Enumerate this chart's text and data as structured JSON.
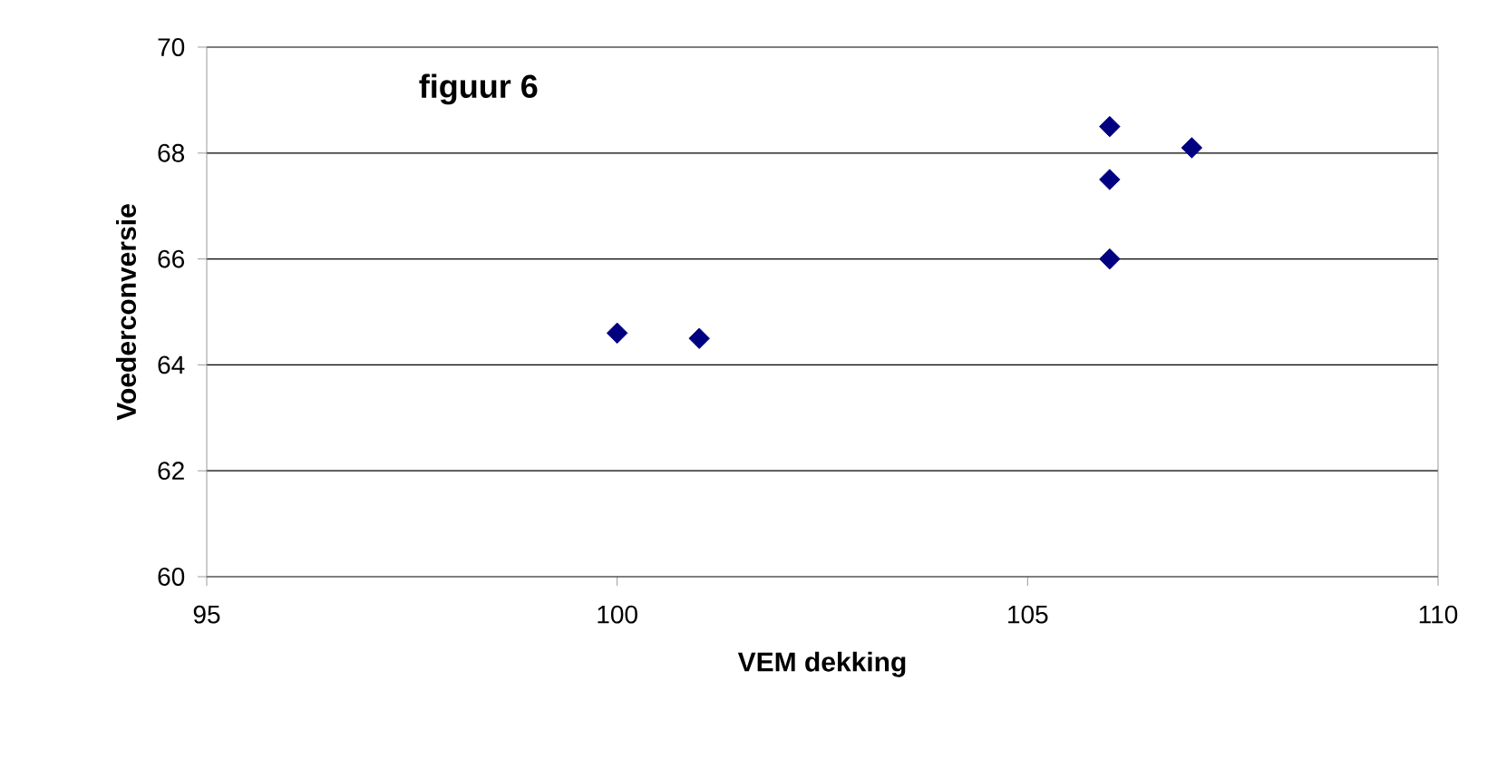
{
  "chart_data": {
    "type": "scatter",
    "title": "figuur 6",
    "xlabel": "VEM dekking",
    "ylabel": "Voederconversie",
    "x": [
      100,
      101,
      106,
      106,
      106,
      107
    ],
    "series": [
      {
        "color": "#000080",
        "values": [
          64.6,
          64.5,
          68.5,
          67.5,
          66.0,
          68.1
        ]
      }
    ],
    "xlim": [
      95,
      110
    ],
    "xticks": [
      95,
      100,
      105,
      110
    ],
    "ylim": [
      60,
      70
    ],
    "yticks": [
      60,
      62,
      64,
      66,
      68,
      70
    ],
    "grid": "y",
    "marker": "diamond"
  }
}
